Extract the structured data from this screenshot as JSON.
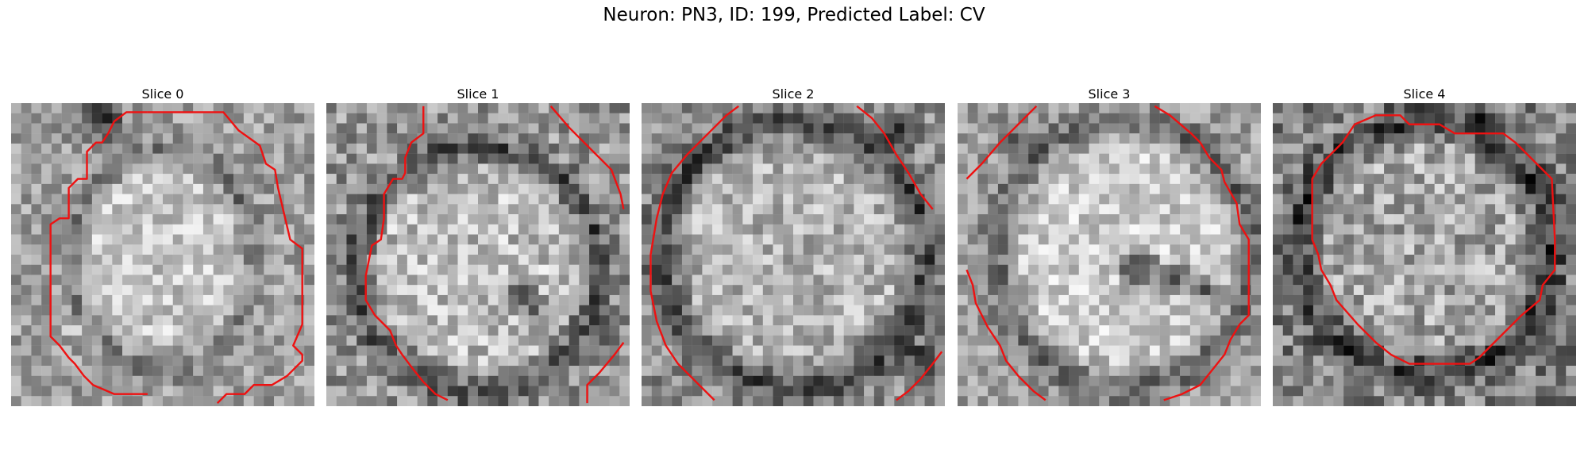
{
  "figure": {
    "title": "Neuron: PN3, ID: 199, Predicted Label: CV"
  },
  "panels": [
    {
      "title": "Slice 0",
      "image": "grayscale-microscopy-slice",
      "overlay": "red-contour"
    },
    {
      "title": "Slice 1",
      "image": "grayscale-microscopy-slice",
      "overlay": "red-contour"
    },
    {
      "title": "Slice 2",
      "image": "grayscale-microscopy-slice",
      "overlay": "red-contour"
    },
    {
      "title": "Slice 3",
      "image": "grayscale-microscopy-slice",
      "overlay": "red-contour"
    },
    {
      "title": "Slice 4",
      "image": "grayscale-microscopy-slice",
      "overlay": "red-contour"
    }
  ],
  "colors": {
    "contour": "#ee1111",
    "background": "#ffffff"
  }
}
